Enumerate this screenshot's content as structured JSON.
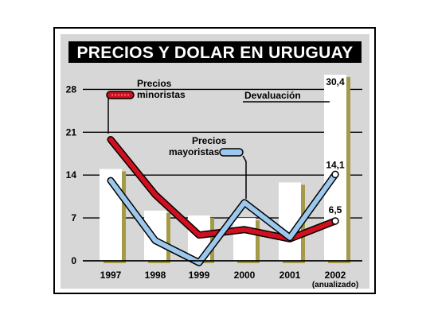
{
  "chart_data": {
    "type": "bar",
    "title": "PRECIOS Y DOLAR EN URUGUAY",
    "categories": [
      "1997",
      "1998",
      "1999",
      "2000",
      "2001",
      "2002"
    ],
    "category_note": "(anualizado)",
    "yticks": [
      "28",
      "21",
      "14",
      "7",
      "0"
    ],
    "ylim": [
      0,
      30.4
    ],
    "bars": {
      "name": "Devaluación",
      "values": [
        15.0,
        8.2,
        7.4,
        7.0,
        12.8,
        30.4
      ],
      "color": "#ffffff",
      "shadow": "#a59a48"
    },
    "series": [
      {
        "name": "Precios minoristas",
        "values": [
          19.8,
          10.8,
          4.2,
          5.1,
          3.6,
          6.5
        ],
        "color": "#d0101e"
      },
      {
        "name": "Precios mayoristas",
        "values": [
          13.1,
          3.3,
          -0.3,
          9.5,
          3.8,
          14.1
        ],
        "color": "#9dc8ee"
      }
    ],
    "data_labels": {
      "bar_2002": "30,4",
      "mayoristas_2002": "14,1",
      "minoristas_2002": "6,5"
    },
    "grid": true
  }
}
